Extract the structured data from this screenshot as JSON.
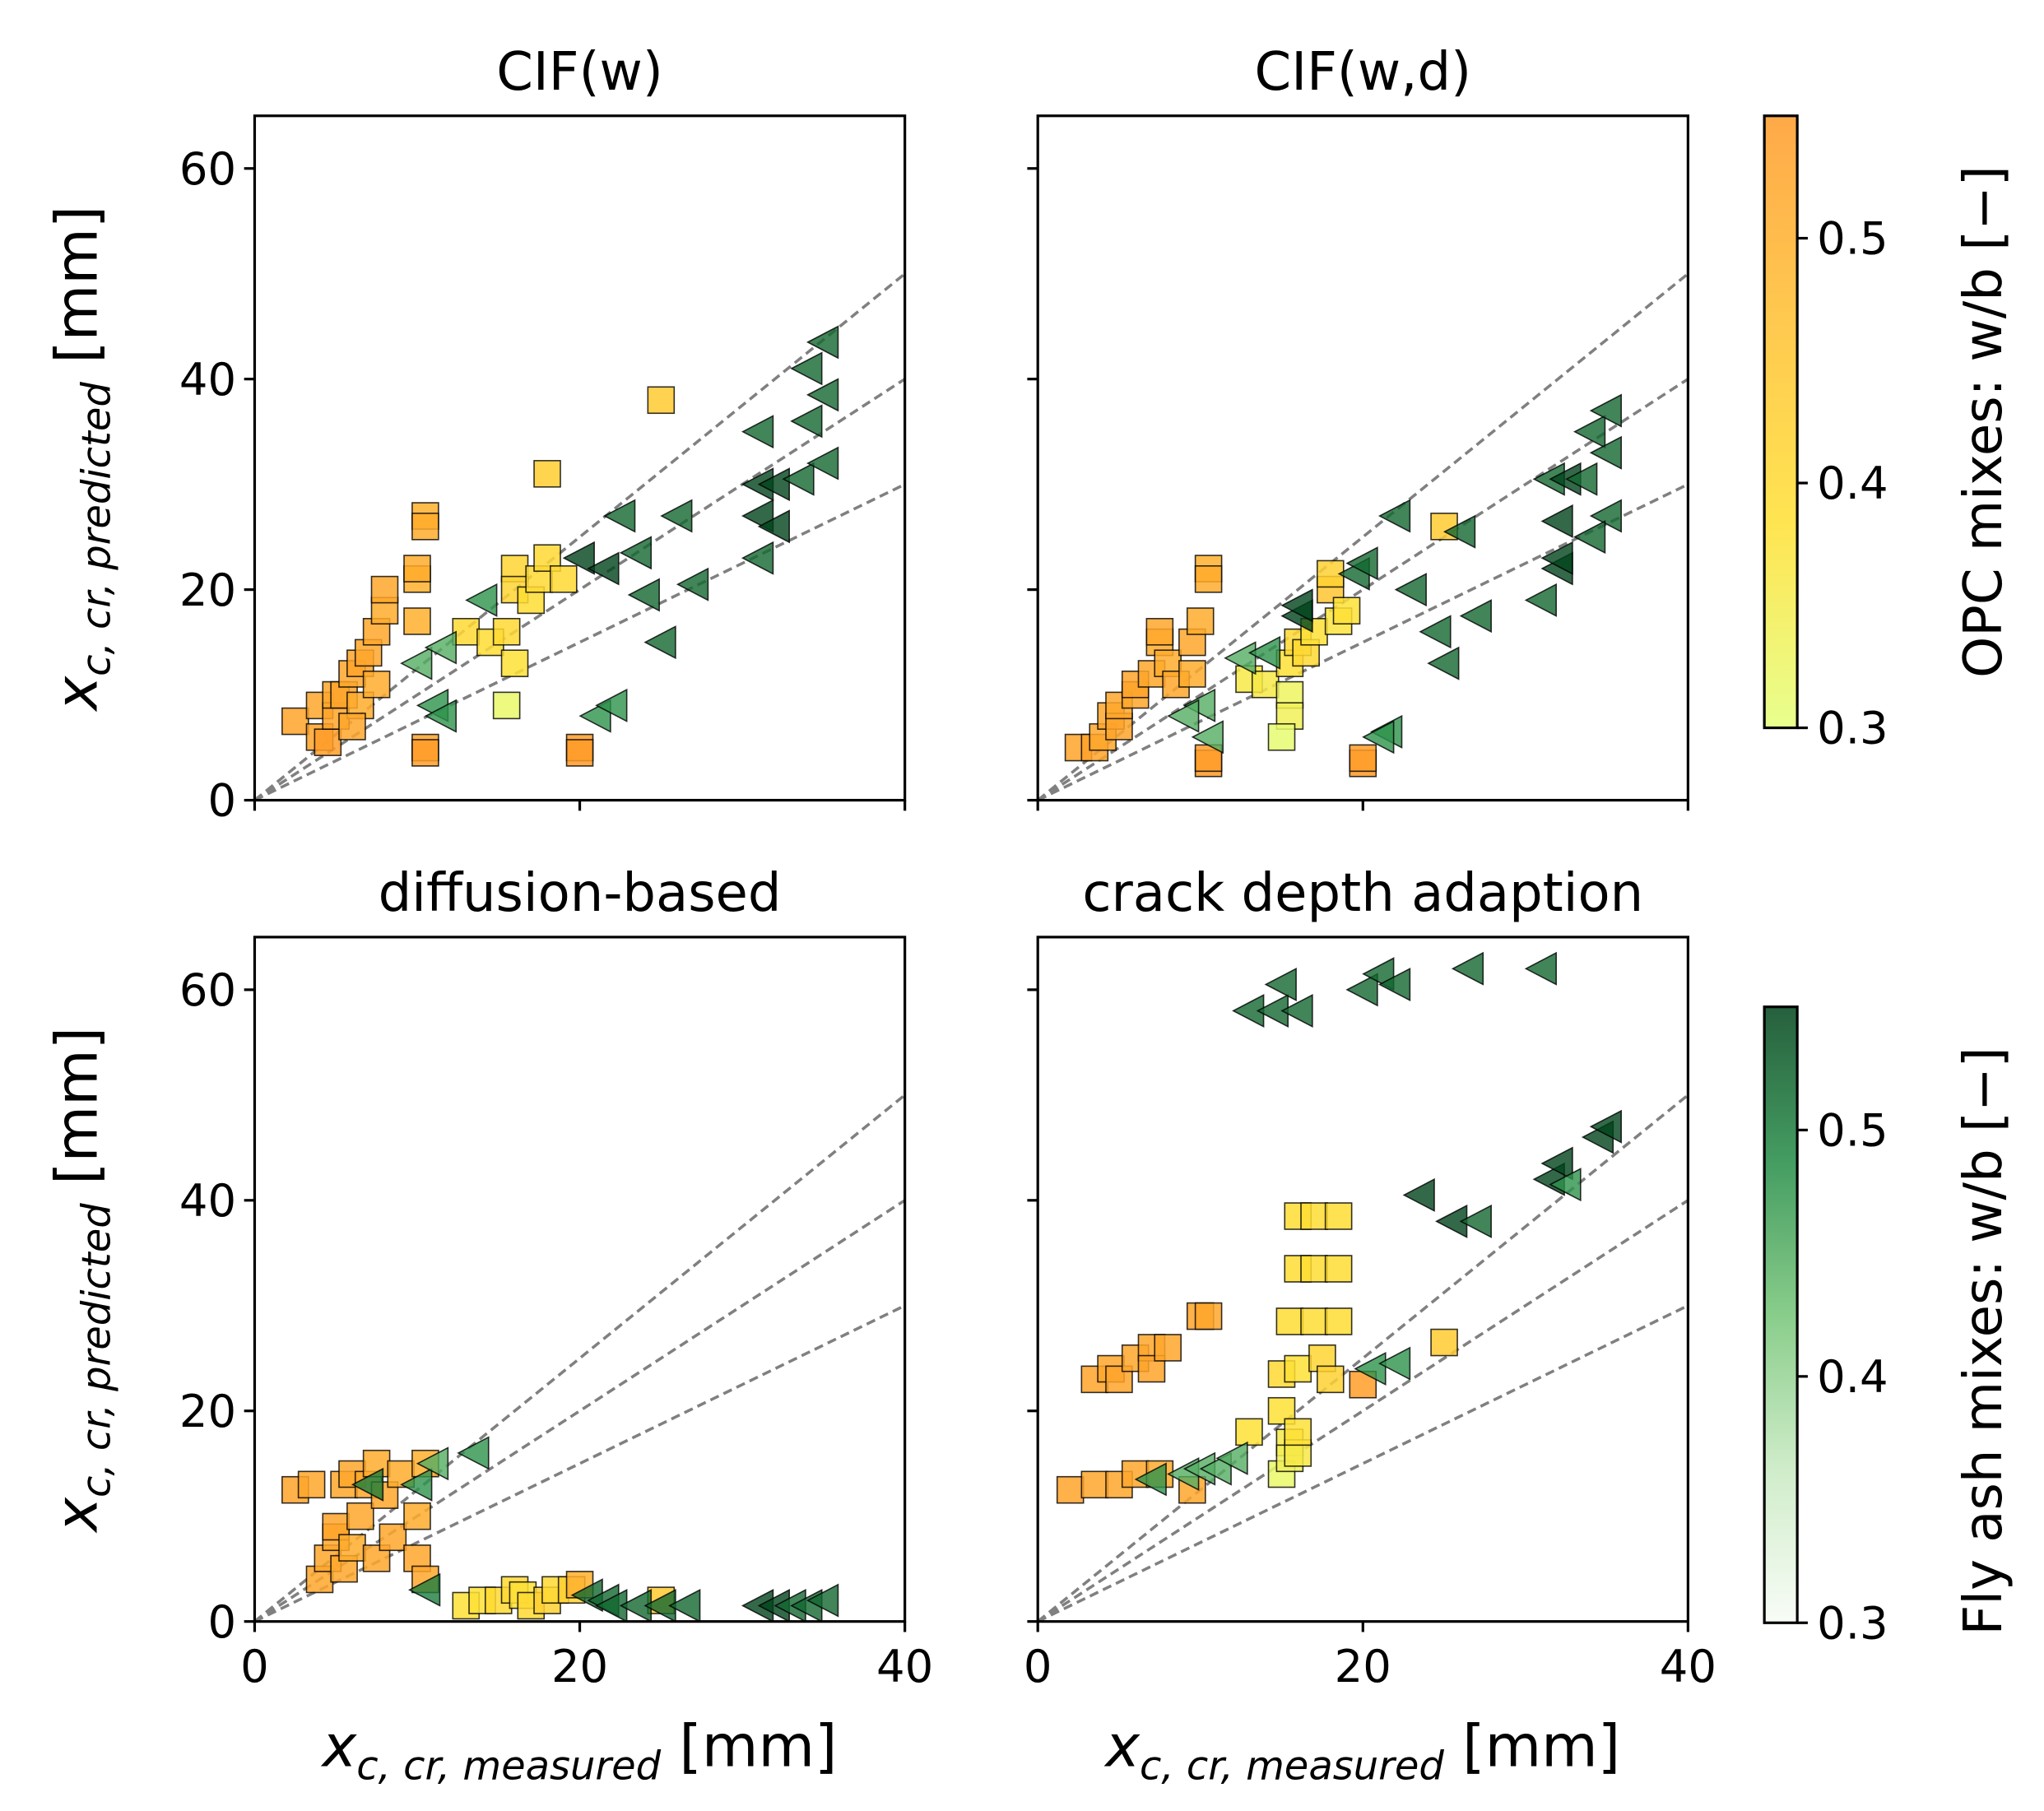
{
  "chart_data": [
    {
      "type": "scatter",
      "title": "CIF(w)",
      "xlim": [
        0,
        40
      ],
      "ylim": [
        0,
        65
      ],
      "xticks": [
        0,
        20,
        40
      ],
      "yticks": [
        0,
        20,
        40,
        60
      ],
      "reference_slopes": [
        1.25,
        1.0,
        0.75
      ],
      "opc": [
        [
          2.5,
          7.5,
          0.53
        ],
        [
          4,
          6,
          0.53
        ],
        [
          4,
          9,
          0.52
        ],
        [
          4.5,
          5.5,
          0.54
        ],
        [
          5,
          8,
          0.53
        ],
        [
          5,
          10,
          0.52
        ],
        [
          5.5,
          10,
          0.53
        ],
        [
          6,
          12,
          0.52
        ],
        [
          6.5,
          9,
          0.51
        ],
        [
          6.5,
          13,
          0.53
        ],
        [
          7,
          14,
          0.52
        ],
        [
          7.5,
          11,
          0.51
        ],
        [
          7.5,
          16,
          0.52
        ],
        [
          8,
          18,
          0.51
        ],
        [
          8,
          20,
          0.52
        ],
        [
          10,
          17,
          0.5
        ],
        [
          10,
          21,
          0.5
        ],
        [
          10,
          22,
          0.51
        ],
        [
          10.5,
          27,
          0.5
        ],
        [
          10.5,
          26,
          0.51
        ],
        [
          10.5,
          5,
          0.53
        ],
        [
          10.5,
          4.5,
          0.54
        ],
        [
          20,
          5,
          0.54
        ],
        [
          20,
          4.5,
          0.55
        ],
        [
          6,
          7,
          0.52
        ],
        [
          13,
          16,
          0.4
        ],
        [
          14.5,
          15,
          0.39
        ],
        [
          15.5,
          16,
          0.4
        ],
        [
          16,
          22,
          0.41
        ],
        [
          16,
          20,
          0.41
        ],
        [
          16,
          13,
          0.38
        ],
        [
          17,
          19,
          0.39
        ],
        [
          17.5,
          21,
          0.4
        ],
        [
          18,
          23,
          0.4
        ],
        [
          19,
          21,
          0.4
        ],
        [
          18,
          31,
          0.43
        ],
        [
          25,
          38,
          0.44
        ],
        [
          15.5,
          9,
          0.32
        ]
      ],
      "flyash": [
        [
          10,
          13,
          0.45
        ],
        [
          11.5,
          14.5,
          0.45
        ],
        [
          14,
          19,
          0.48
        ],
        [
          11,
          9,
          0.48
        ],
        [
          11.5,
          8,
          0.48
        ],
        [
          21,
          8,
          0.48
        ],
        [
          22,
          9,
          0.48
        ],
        [
          20,
          23,
          0.55
        ],
        [
          21.5,
          22,
          0.55
        ],
        [
          22.5,
          27,
          0.52
        ],
        [
          23.5,
          23.5,
          0.52
        ],
        [
          24,
          19.5,
          0.52
        ],
        [
          25,
          15,
          0.52
        ],
        [
          26,
          27,
          0.52
        ],
        [
          27,
          20.5,
          0.52
        ],
        [
          31,
          23,
          0.52
        ],
        [
          31,
          35,
          0.52
        ],
        [
          31,
          30,
          0.55
        ],
        [
          32,
          30,
          0.55
        ],
        [
          31,
          27,
          0.55
        ],
        [
          32,
          26,
          0.55
        ],
        [
          33.5,
          30.5,
          0.52
        ],
        [
          34,
          41,
          0.52
        ],
        [
          34,
          36,
          0.52
        ],
        [
          35,
          38.5,
          0.52
        ],
        [
          35,
          43.5,
          0.52
        ],
        [
          35,
          32,
          0.52
        ]
      ]
    },
    {
      "type": "scatter",
      "title": "CIF(w,d)",
      "xlim": [
        0,
        40
      ],
      "ylim": [
        0,
        65
      ],
      "xticks": [
        0,
        20,
        40
      ],
      "yticks": [
        0,
        20,
        40,
        60
      ],
      "reference_slopes": [
        1.25,
        1.0,
        0.75
      ],
      "opc": [
        [
          2.5,
          5,
          0.53
        ],
        [
          3.5,
          5,
          0.53
        ],
        [
          4,
          6,
          0.52
        ],
        [
          4.5,
          8,
          0.52
        ],
        [
          5,
          7,
          0.53
        ],
        [
          5,
          9,
          0.52
        ],
        [
          6,
          10,
          0.52
        ],
        [
          6,
          11,
          0.53
        ],
        [
          7,
          12,
          0.52
        ],
        [
          7.5,
          15,
          0.51
        ],
        [
          7.5,
          16,
          0.52
        ],
        [
          8,
          13,
          0.51
        ],
        [
          8.5,
          11,
          0.52
        ],
        [
          9.5,
          12,
          0.51
        ],
        [
          9.5,
          15,
          0.52
        ],
        [
          10,
          17,
          0.51
        ],
        [
          10.5,
          22,
          0.5
        ],
        [
          10.5,
          21,
          0.51
        ],
        [
          10.5,
          3.5,
          0.55
        ],
        [
          10.5,
          4,
          0.54
        ],
        [
          20,
          3.5,
          0.55
        ],
        [
          20,
          4,
          0.54
        ],
        [
          13,
          11.5,
          0.36
        ],
        [
          14,
          11,
          0.36
        ],
        [
          15.5,
          10,
          0.33
        ],
        [
          15.5,
          8,
          0.34
        ],
        [
          15,
          6,
          0.31
        ],
        [
          15.5,
          13,
          0.38
        ],
        [
          16,
          15,
          0.4
        ],
        [
          16.5,
          14,
          0.4
        ],
        [
          17,
          16,
          0.38
        ],
        [
          18,
          20,
          0.45
        ],
        [
          18,
          21.5,
          0.42
        ],
        [
          18.5,
          17,
          0.37
        ],
        [
          19,
          18,
          0.38
        ],
        [
          25,
          26,
          0.44
        ]
      ],
      "flyash": [
        [
          10,
          9,
          0.45
        ],
        [
          10.5,
          6,
          0.45
        ],
        [
          9,
          8,
          0.45
        ],
        [
          12.5,
          13.5,
          0.45
        ],
        [
          14,
          14,
          0.48
        ],
        [
          16,
          17.5,
          0.55
        ],
        [
          16,
          18.5,
          0.55
        ],
        [
          19.5,
          21.5,
          0.52
        ],
        [
          20,
          22.5,
          0.52
        ],
        [
          21.5,
          6.5,
          0.48
        ],
        [
          21,
          6,
          0.48
        ],
        [
          22,
          27,
          0.52
        ],
        [
          23,
          20,
          0.52
        ],
        [
          24.5,
          16,
          0.52
        ],
        [
          25,
          13,
          0.52
        ],
        [
          26,
          25.5,
          0.52
        ],
        [
          27,
          17.5,
          0.52
        ],
        [
          31,
          19,
          0.52
        ],
        [
          31.5,
          30.5,
          0.52
        ],
        [
          32.5,
          30.5,
          0.55
        ],
        [
          32,
          26.5,
          0.55
        ],
        [
          32,
          22,
          0.55
        ],
        [
          32,
          23,
          0.55
        ],
        [
          33.5,
          30.5,
          0.52
        ],
        [
          34,
          35,
          0.52
        ],
        [
          35,
          37,
          0.52
        ],
        [
          35,
          33,
          0.52
        ],
        [
          35,
          27,
          0.52
        ],
        [
          34,
          25,
          0.52
        ]
      ]
    },
    {
      "type": "scatter",
      "title": "diffusion-based",
      "xlim": [
        0,
        40
      ],
      "ylim": [
        0,
        65
      ],
      "xticks": [
        0,
        20,
        40
      ],
      "yticks": [
        0,
        20,
        40,
        60
      ],
      "reference_slopes": [
        1.25,
        1.0,
        0.75
      ],
      "opc": [
        [
          2.5,
          12.5,
          0.53
        ],
        [
          3.5,
          13,
          0.52
        ],
        [
          4,
          4,
          0.52
        ],
        [
          4.5,
          6,
          0.52
        ],
        [
          5,
          8,
          0.52
        ],
        [
          5,
          9,
          0.53
        ],
        [
          5.5,
          13,
          0.52
        ],
        [
          5.5,
          5,
          0.52
        ],
        [
          6,
          7,
          0.51
        ],
        [
          6,
          14,
          0.52
        ],
        [
          6.5,
          10,
          0.52
        ],
        [
          7,
          13,
          0.52
        ],
        [
          7.5,
          15,
          0.51
        ],
        [
          7.5,
          6,
          0.52
        ],
        [
          8,
          12,
          0.52
        ],
        [
          8.5,
          8,
          0.52
        ],
        [
          9,
          14,
          0.51
        ],
        [
          10,
          10,
          0.51
        ],
        [
          10,
          6,
          0.52
        ],
        [
          10.5,
          15,
          0.5
        ],
        [
          10.5,
          4,
          0.52
        ],
        [
          13,
          1.5,
          0.38
        ],
        [
          14,
          2,
          0.38
        ],
        [
          15,
          2,
          0.4
        ],
        [
          16,
          3,
          0.4
        ],
        [
          16.5,
          2.5,
          0.38
        ],
        [
          17,
          1.5,
          0.4
        ],
        [
          18,
          2,
          0.42
        ],
        [
          18.5,
          3,
          0.4
        ],
        [
          19.5,
          3,
          0.42
        ],
        [
          20,
          3.5,
          0.5
        ],
        [
          25,
          2,
          0.44
        ]
      ],
      "flyash": [
        [
          7,
          13,
          0.5
        ],
        [
          10,
          13,
          0.48
        ],
        [
          11,
          15,
          0.45
        ],
        [
          13.5,
          16,
          0.48
        ],
        [
          10.5,
          3,
          0.5
        ],
        [
          20.5,
          2.5,
          0.52
        ],
        [
          21.5,
          2,
          0.52
        ],
        [
          22,
          1.5,
          0.52
        ],
        [
          23.5,
          1.5,
          0.52
        ],
        [
          25,
          1.5,
          0.52
        ],
        [
          26.5,
          1.5,
          0.52
        ],
        [
          31,
          1.5,
          0.55
        ],
        [
          32,
          1.5,
          0.55
        ],
        [
          33,
          1.5,
          0.52
        ],
        [
          34,
          1.5,
          0.52
        ],
        [
          35,
          2,
          0.52
        ]
      ]
    },
    {
      "type": "scatter",
      "title": "crack depth adaption",
      "xlim": [
        0,
        40
      ],
      "ylim": [
        0,
        65
      ],
      "xticks": [
        0,
        20,
        40
      ],
      "yticks": [
        0,
        20,
        40,
        60
      ],
      "reference_slopes": [
        1.25,
        1.0,
        0.75
      ],
      "opc": [
        [
          2,
          12.5,
          0.53
        ],
        [
          3.5,
          13,
          0.52
        ],
        [
          3.5,
          23,
          0.53
        ],
        [
          4.5,
          24,
          0.52
        ],
        [
          5,
          23,
          0.53
        ],
        [
          5,
          13,
          0.52
        ],
        [
          6,
          14,
          0.52
        ],
        [
          6,
          25,
          0.52
        ],
        [
          7,
          26,
          0.52
        ],
        [
          7,
          24,
          0.53
        ],
        [
          7.5,
          14,
          0.51
        ],
        [
          9.5,
          12.5,
          0.52
        ],
        [
          10,
          29,
          0.53
        ],
        [
          10.5,
          29,
          0.52
        ],
        [
          8,
          26,
          0.52
        ],
        [
          20,
          22.5,
          0.54
        ],
        [
          13,
          18,
          0.38
        ],
        [
          15,
          20,
          0.38
        ],
        [
          15.5,
          17,
          0.36
        ],
        [
          15,
          14,
          0.32
        ],
        [
          15.5,
          15.5,
          0.34
        ],
        [
          16,
          16,
          0.36
        ],
        [
          16,
          18,
          0.38
        ],
        [
          15,
          23.5,
          0.4
        ],
        [
          16,
          24,
          0.38
        ],
        [
          17.5,
          25,
          0.41
        ],
        [
          18,
          23,
          0.42
        ],
        [
          15.5,
          28.5,
          0.39
        ],
        [
          17,
          28.5,
          0.39
        ],
        [
          18.5,
          28.5,
          0.39
        ],
        [
          16,
          33.5,
          0.39
        ],
        [
          17,
          33.5,
          0.39
        ],
        [
          18.5,
          33.5,
          0.39
        ],
        [
          16,
          38.5,
          0.39
        ],
        [
          17,
          38.5,
          0.39
        ],
        [
          18.5,
          38.5,
          0.39
        ],
        [
          25,
          26.5,
          0.44
        ]
      ],
      "flyash": [
        [
          7,
          13.5,
          0.48
        ],
        [
          9,
          14,
          0.45
        ],
        [
          10,
          14.5,
          0.45
        ],
        [
          11,
          14.5,
          0.45
        ],
        [
          12,
          15.5,
          0.45
        ],
        [
          13,
          58,
          0.52
        ],
        [
          14.5,
          58,
          0.52
        ],
        [
          15,
          60.5,
          0.52
        ],
        [
          16,
          58,
          0.52
        ],
        [
          20,
          60,
          0.52
        ],
        [
          21,
          61.5,
          0.52
        ],
        [
          22,
          60.5,
          0.52
        ],
        [
          26.5,
          62,
          0.52
        ],
        [
          31,
          62,
          0.52
        ],
        [
          20.5,
          24,
          0.48
        ],
        [
          22,
          24.5,
          0.48
        ],
        [
          23.5,
          40.5,
          0.55
        ],
        [
          25.5,
          38,
          0.55
        ],
        [
          27,
          38,
          0.52
        ],
        [
          31.5,
          42,
          0.55
        ],
        [
          32,
          43.5,
          0.55
        ],
        [
          32.5,
          41.5,
          0.48
        ],
        [
          34.5,
          46,
          0.55
        ],
        [
          35,
          47,
          0.55
        ]
      ]
    }
  ],
  "axis_labels": {
    "x_main": "x",
    "x_sub": "c, cr, measured",
    "x_unit": " [mm]",
    "y_main": "x",
    "y_sub": "c, cr, predicted",
    "y_unit": " [mm]"
  },
  "colorbars": [
    {
      "label": "OPC mixes: w/b [−]",
      "range": [
        0.3,
        0.55
      ],
      "ticks": [
        "0.3",
        "0.4",
        "0.5"
      ],
      "colors": [
        "#e4ff7a",
        "#ffe033",
        "#ffbf30",
        "#ff9a28"
      ]
    },
    {
      "label": "Fly ash mixes: w/b [−]",
      "range": [
        0.3,
        0.55
      ],
      "ticks": [
        "0.3",
        "0.4",
        "0.5"
      ],
      "colors": [
        "#f7fcf5",
        "#c7e9c0",
        "#74c476",
        "#238b45",
        "#00441b"
      ]
    }
  ]
}
